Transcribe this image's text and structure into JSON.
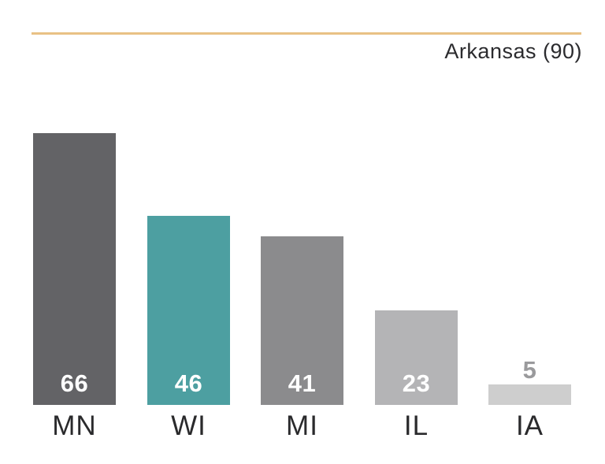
{
  "chart_data": {
    "type": "bar",
    "categories": [
      "MN",
      "WI",
      "MI",
      "IL",
      "IA"
    ],
    "values": [
      66,
      46,
      41,
      23,
      5
    ],
    "bar_colors": [
      "#636366",
      "#4d9fa1",
      "#8b8b8d",
      "#b4b4b6",
      "#cecece"
    ],
    "value_label_colors": [
      "#ffffff",
      "#ffffff",
      "#ffffff",
      "#ffffff",
      "#9a9a9c"
    ],
    "value_label_inside": [
      true,
      true,
      true,
      true,
      false
    ],
    "reference_line": {
      "label": "Arkansas (90)",
      "value": 90,
      "color": "#e9c185"
    },
    "title": "",
    "xlabel": "",
    "ylabel": "",
    "axis": "none",
    "grid": false,
    "legend": "none",
    "ylim": [
      0,
      95
    ],
    "text_color": "#2a2a2c"
  }
}
